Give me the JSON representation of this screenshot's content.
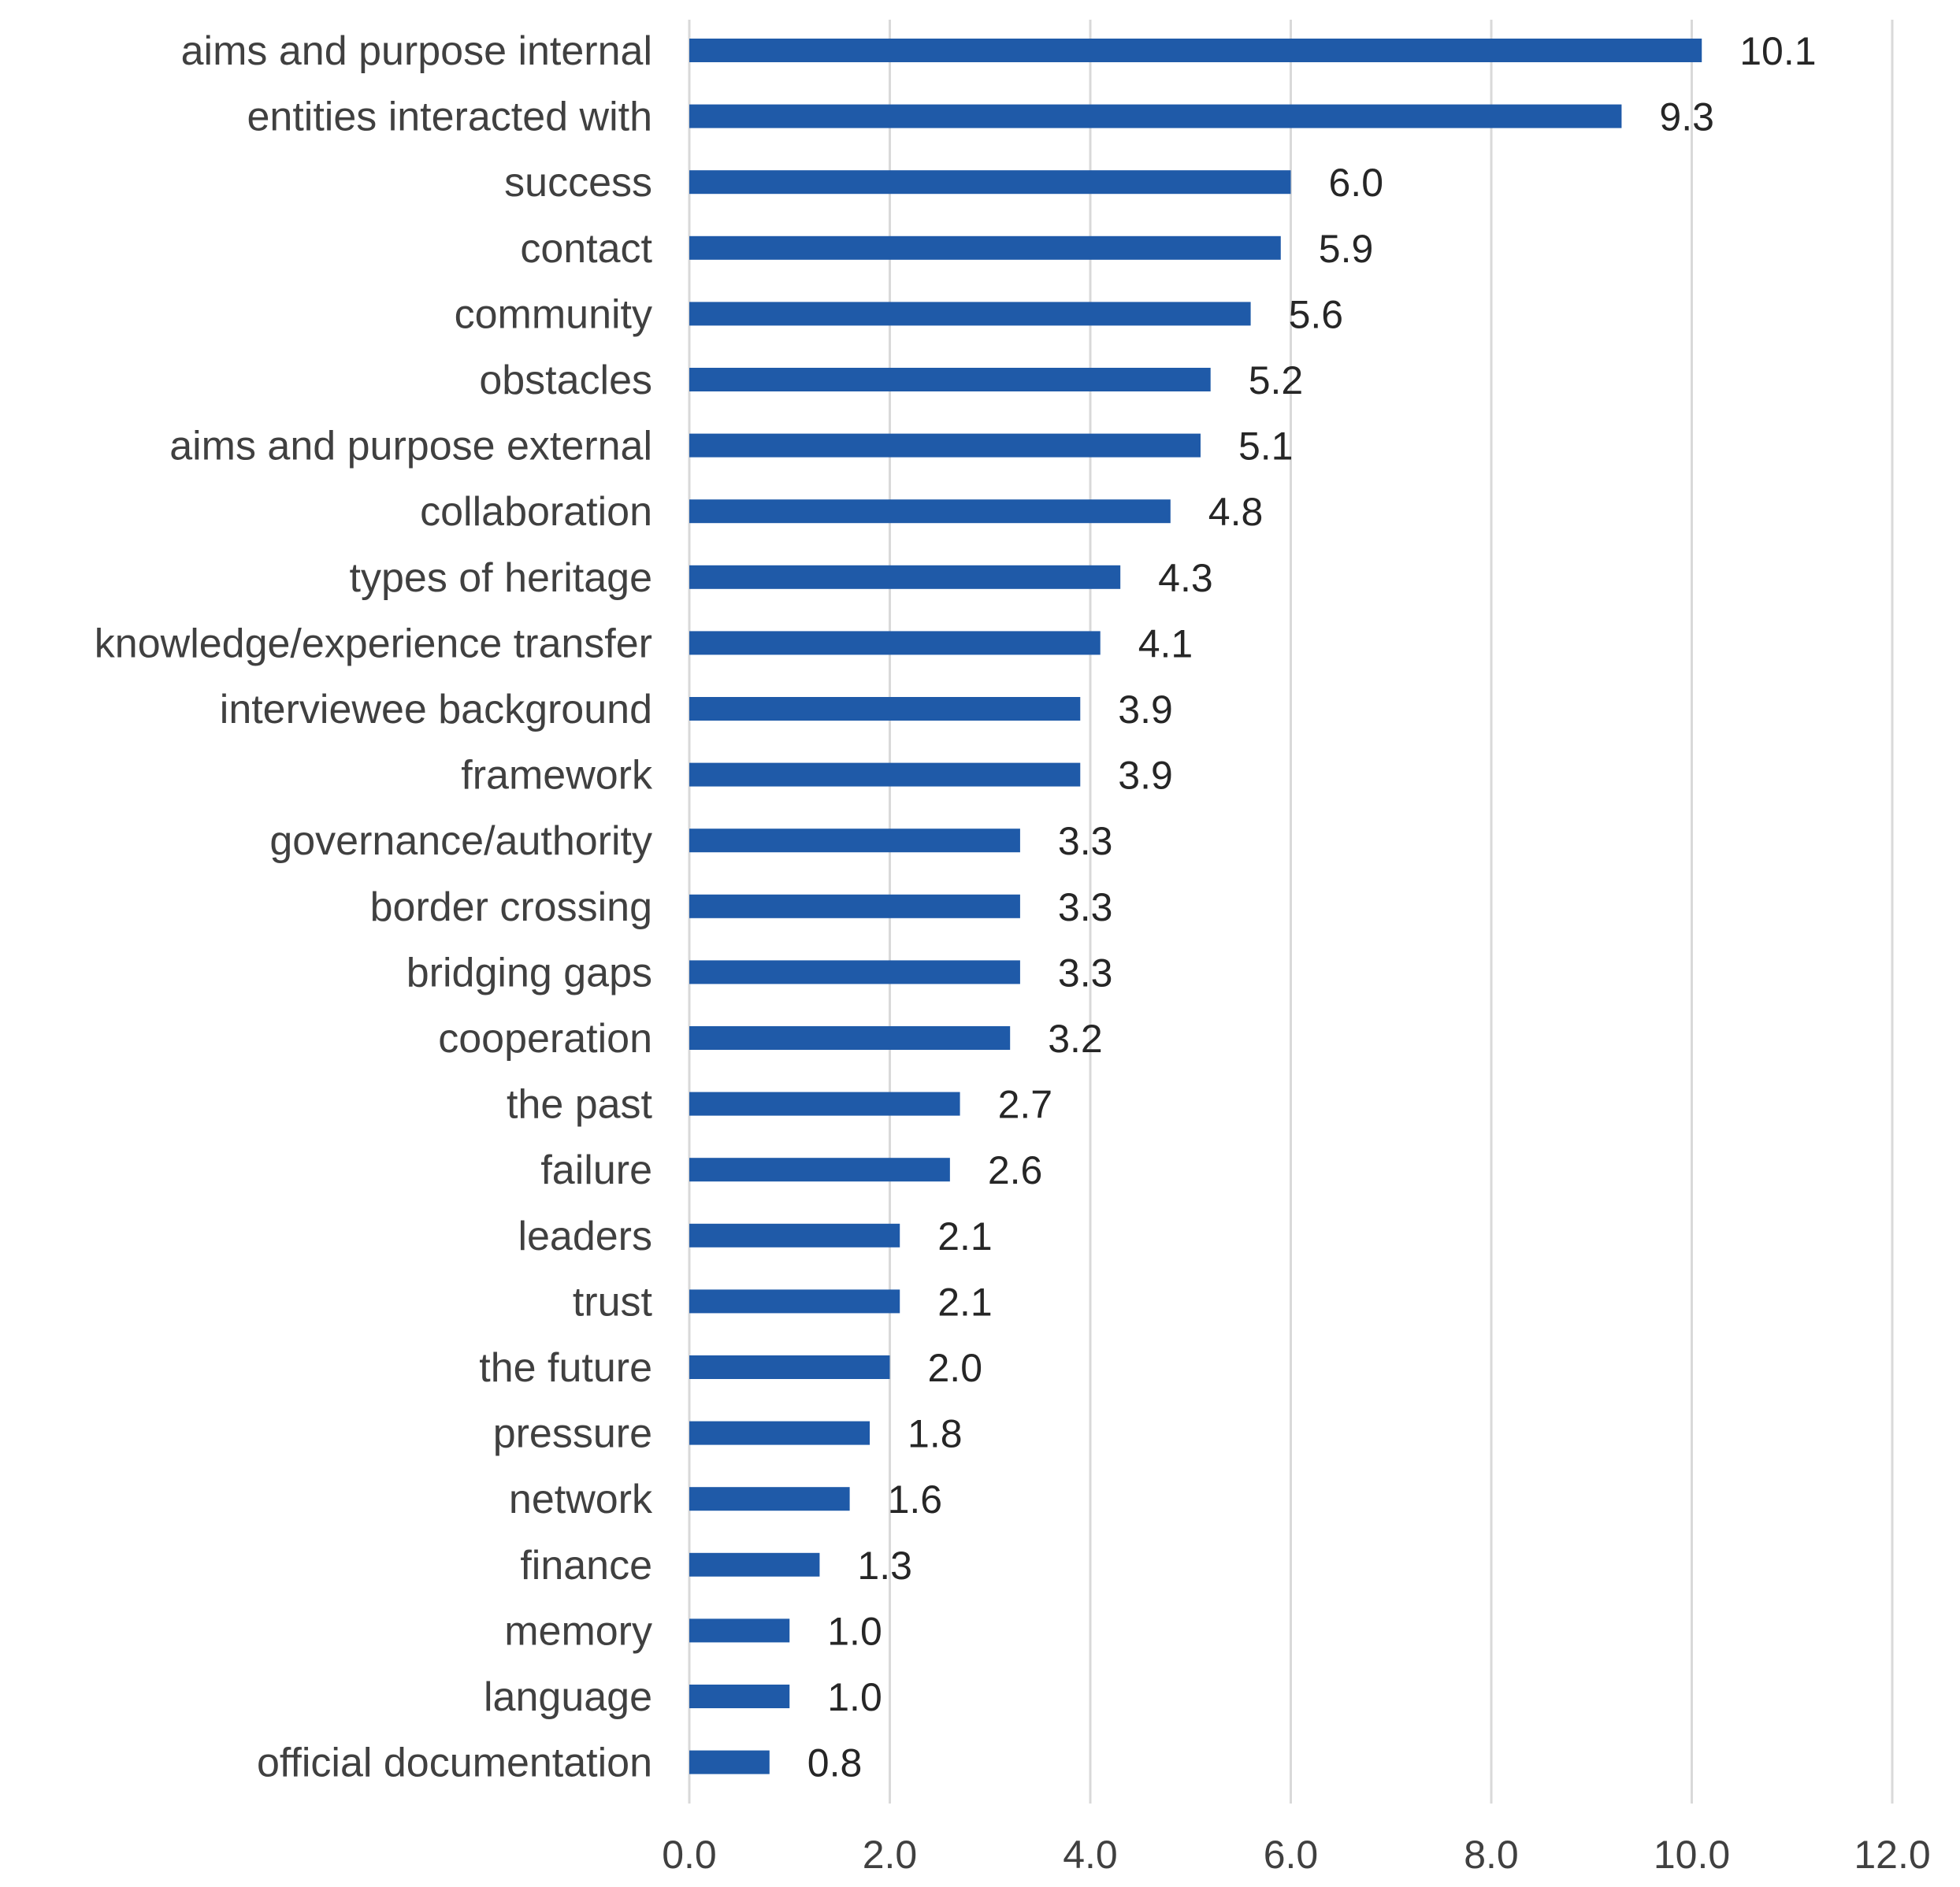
{
  "chart_data": {
    "type": "bar",
    "orientation": "horizontal",
    "title": "",
    "xlabel": "",
    "ylabel": "",
    "xlim": [
      0,
      12
    ],
    "x_ticks": [
      "0.0",
      "2.0",
      "4.0",
      "6.0",
      "8.0",
      "10.0",
      "12.0"
    ],
    "grid": true,
    "legend": "none",
    "bar_color": "#1f5aa8",
    "categories": [
      "aims and purpose internal",
      "entities interacted with",
      "success",
      "contact",
      "community",
      "obstacles",
      "aims and purpose external",
      "collaboration",
      "types of heritage",
      "knowledge/experience transfer",
      "interviewee background",
      "framework",
      "governance/authority",
      "border crossing",
      "bridging gaps",
      "cooperation",
      "the past",
      "failure",
      "leaders",
      "trust",
      "the future",
      "pressure",
      "network",
      "finance",
      "memory",
      "language",
      "official documentation"
    ],
    "values": [
      10.1,
      9.3,
      6.0,
      5.9,
      5.6,
      5.2,
      5.1,
      4.8,
      4.3,
      4.1,
      3.9,
      3.9,
      3.3,
      3.3,
      3.3,
      3.2,
      2.7,
      2.6,
      2.1,
      2.1,
      2.0,
      1.8,
      1.6,
      1.3,
      1.0,
      1.0,
      0.8
    ],
    "value_labels": [
      "10.1",
      "9.3",
      "6.0",
      "5.9",
      "5.6",
      "5.2",
      "5.1",
      "4.8",
      "4.3",
      "4.1",
      "3.9",
      "3.9",
      "3.3",
      "3.3",
      "3.3",
      "3.2",
      "2.7",
      "2.6",
      "2.1",
      "2.1",
      "2.0",
      "1.8",
      "1.6",
      "1.3",
      "1.0",
      "1.0",
      "0.8"
    ]
  }
}
